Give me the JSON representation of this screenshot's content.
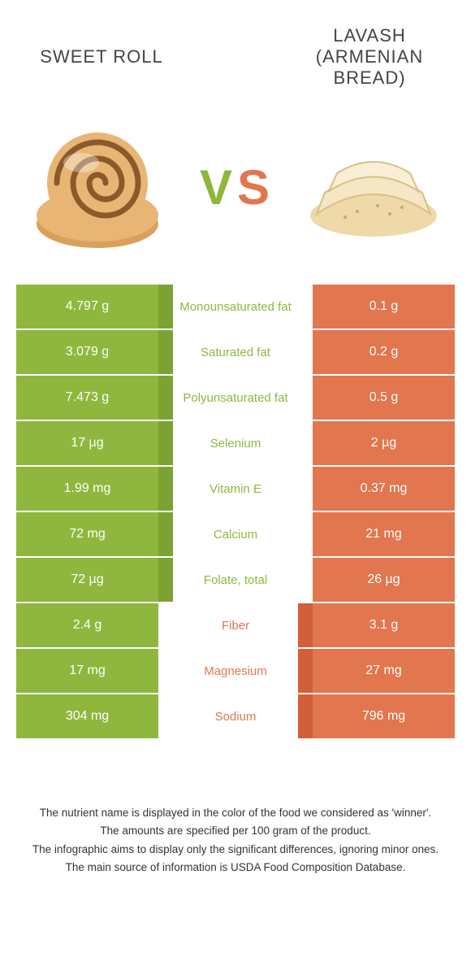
{
  "colors": {
    "green": "#8fb73e",
    "green_dark": "#7ca233",
    "orange": "#e2764f",
    "orange_dark": "#d15f37",
    "text": "#444444"
  },
  "left": {
    "title": "SWEET ROLL"
  },
  "right": {
    "title_line1": "LAVASH",
    "title_line2": "(ARMENIAN",
    "title_line3": "BREAD)"
  },
  "vs": {
    "v": "V",
    "s": "S"
  },
  "rows": [
    {
      "left": "4.797 g",
      "label": "Monounsaturated fat",
      "right": "0.1 g",
      "winner": "left"
    },
    {
      "left": "3.079 g",
      "label": "Saturated fat",
      "right": "0.2 g",
      "winner": "left"
    },
    {
      "left": "7.473 g",
      "label": "Polyunsaturated fat",
      "right": "0.5 g",
      "winner": "left"
    },
    {
      "left": "17 µg",
      "label": "Selenium",
      "right": "2 µg",
      "winner": "left"
    },
    {
      "left": "1.99 mg",
      "label": "Vitamin E",
      "right": "0.37 mg",
      "winner": "left"
    },
    {
      "left": "72 mg",
      "label": "Calcium",
      "right": "21 mg",
      "winner": "left"
    },
    {
      "left": "72 µg",
      "label": "Folate, total",
      "right": "26 µg",
      "winner": "left"
    },
    {
      "left": "2.4 g",
      "label": "Fiber",
      "right": "3.1 g",
      "winner": "right"
    },
    {
      "left": "17 mg",
      "label": "Magnesium",
      "right": "27 mg",
      "winner": "right"
    },
    {
      "left": "304 mg",
      "label": "Sodium",
      "right": "796 mg",
      "winner": "right"
    }
  ],
  "footer": [
    "The nutrient name is displayed in the color of the food we considered as 'winner'.",
    "The amounts are specified per 100 gram of the product.",
    "The infographic aims to display only the significant differences, ignoring minor ones.",
    "The main source of information is USDA Food Composition Database."
  ]
}
